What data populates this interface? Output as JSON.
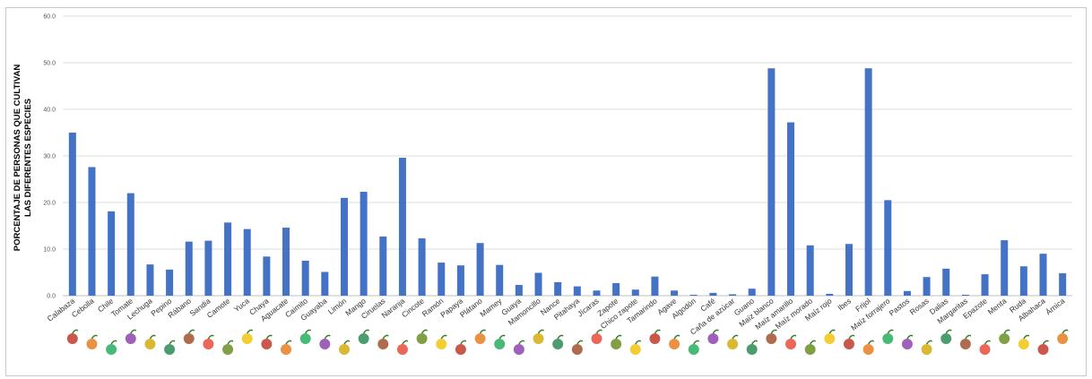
{
  "chart_data": {
    "type": "bar",
    "ylabel_line1": "PORCENTAJE DE PERSONAS QUE CULTIVAN",
    "ylabel_line2": "LAS DIFERENTES ESPECIES",
    "ylim": [
      0,
      60
    ],
    "yticks": [
      "0.0",
      "10.0",
      "20.0",
      "30.0",
      "40.0",
      "50.0",
      "60.0"
    ],
    "grid": true,
    "legend": "none",
    "bar_color": "#4472c4",
    "categories": [
      "Calabaza",
      "Cebolla",
      "Chile",
      "Tomate",
      "Lechuga",
      "Pepino",
      "Rábano",
      "Sandia",
      "Camote",
      "Yuca",
      "Chaya",
      "Aguacate",
      "Caimito",
      "Guayaba",
      "Limón",
      "Mango",
      "Ciruelas",
      "Naranja",
      "Cincote",
      "Ramón",
      "Papaya",
      "Plátano",
      "Mamey",
      "Guaya",
      "Mamoncillo",
      "Nance",
      "Pitahaya",
      "Jícaras",
      "Zapote",
      "Chico zapote",
      "Tamarindo",
      "Agave",
      "Algodón",
      "Café",
      "Caña de azúcar",
      "Guano",
      "Maíz blanco",
      "Maíz amarillo",
      "Maíz morado",
      "Maíz rojo",
      "Ibes",
      "Frijol",
      "Maíz forrajero",
      "Pastos",
      "Rosas",
      "Dalias",
      "Margaritas",
      "Epazote",
      "Menta",
      "Ruda",
      "Albahaca",
      "Árnica"
    ],
    "values": [
      35.0,
      27.6,
      18.1,
      22.0,
      6.7,
      5.6,
      11.6,
      11.8,
      15.7,
      14.3,
      8.4,
      14.6,
      7.5,
      5.1,
      21.0,
      22.3,
      12.7,
      29.6,
      12.3,
      7.1,
      6.5,
      11.3,
      6.6,
      2.3,
      4.9,
      2.9,
      2.0,
      1.1,
      2.7,
      1.3,
      4.1,
      1.1,
      0.2,
      0.6,
      0.3,
      1.5,
      48.8,
      37.2,
      10.8,
      0.4,
      11.1,
      48.8,
      20.5,
      1.0,
      4.0,
      5.8,
      0.2,
      4.6,
      11.9,
      6.3,
      9.0,
      4.8
    ]
  }
}
